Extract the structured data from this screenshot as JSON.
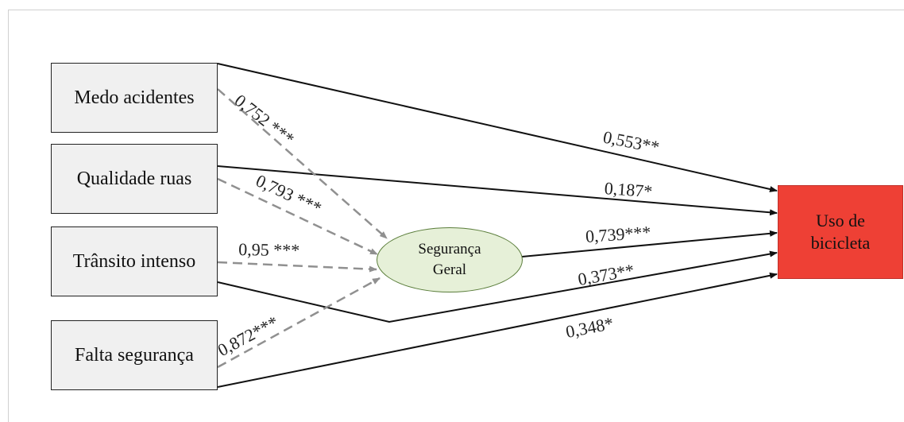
{
  "predictors": [
    {
      "id": "medo",
      "label": "Medo acidentes"
    },
    {
      "id": "qualidade",
      "label": "Qualidade ruas"
    },
    {
      "id": "transito",
      "label": "Trânsito intenso"
    },
    {
      "id": "falta",
      "label": "Falta segurança"
    }
  ],
  "mediator": {
    "line1": "Segurança",
    "line2": "Geral"
  },
  "outcome": {
    "line1": "Uso de",
    "line2": "bicicleta"
  },
  "paths_to_mediator": [
    {
      "from": "medo",
      "label": "0,752 ***"
    },
    {
      "from": "qualidade",
      "label": "0,793 ***"
    },
    {
      "from": "transito",
      "label": "0,95 ***"
    },
    {
      "from": "falta",
      "label": "0,872***"
    }
  ],
  "paths_to_outcome": [
    {
      "from": "medo",
      "label": "0,553**"
    },
    {
      "from": "qualidade",
      "label": "0,187*"
    },
    {
      "from": "mediator",
      "label": "0,739***"
    },
    {
      "from": "transito",
      "label": "0,373**"
    },
    {
      "from": "falta",
      "label": "0,348*"
    }
  ],
  "colors": {
    "outcome_fill": "#ee4035",
    "mediator_fill": "#e6f0d8",
    "box_fill": "#f0f0f0",
    "dashed_line": "#909090"
  }
}
